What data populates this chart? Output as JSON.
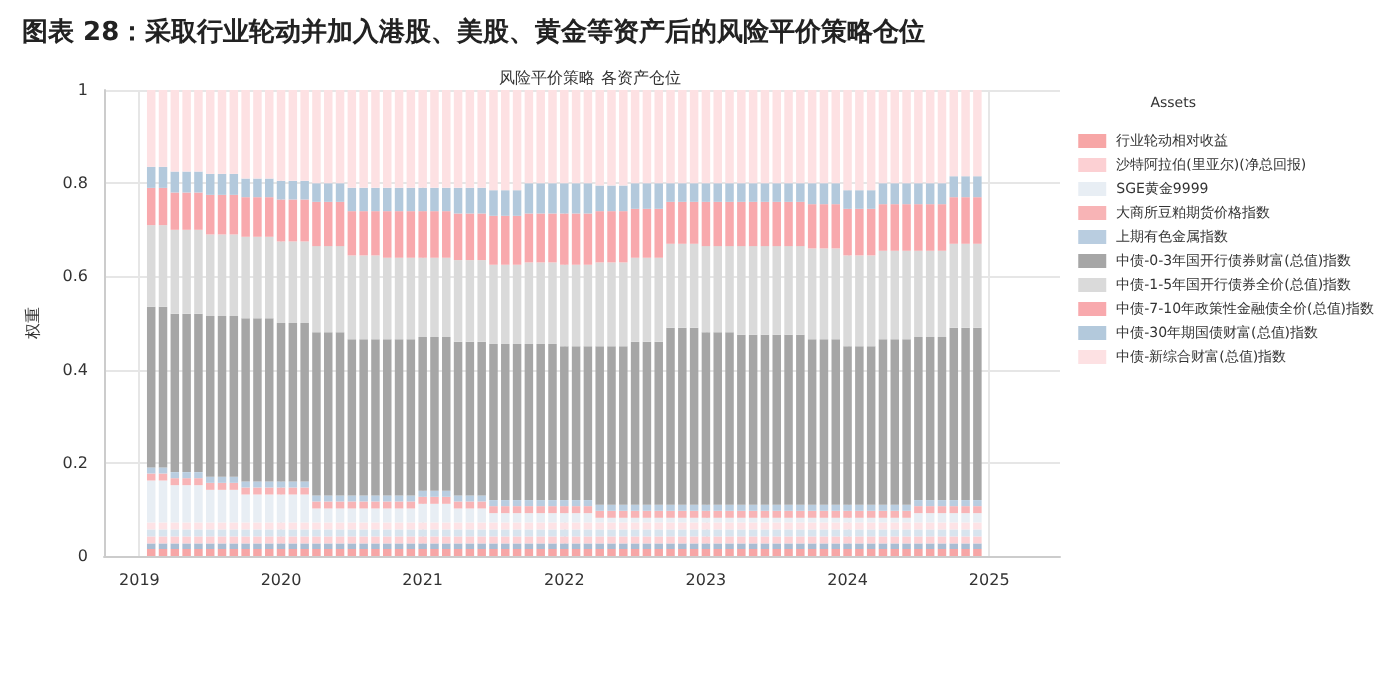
{
  "chart_data": {
    "type": "bar",
    "title": "图表 28：采取行业轮动并加入港股、美股、黄金等资产后的风险平价策略仓位",
    "subtitle": "风险平价策略 各资产仓位",
    "ylabel": "权重",
    "legend_title": "Assets",
    "stacked": true,
    "grid": true,
    "legend": "right",
    "xlim": [
      "2018-10",
      "2025-07"
    ],
    "xticks": [
      "2019",
      "2020",
      "2021",
      "2022",
      "2023",
      "2024",
      "2025"
    ],
    "ylim": [
      0,
      1
    ],
    "yticks": [
      0,
      0.2,
      0.4,
      0.6,
      0.8,
      1
    ],
    "x": [
      "2019-02",
      "2019-03",
      "2019-04",
      "2019-05",
      "2019-06",
      "2019-07",
      "2019-08",
      "2019-09",
      "2019-10",
      "2019-11",
      "2019-12",
      "2020-01",
      "2020-02",
      "2020-03",
      "2020-04",
      "2020-05",
      "2020-06",
      "2020-07",
      "2020-08",
      "2020-09",
      "2020-10",
      "2020-11",
      "2020-12",
      "2021-01",
      "2021-02",
      "2021-03",
      "2021-04",
      "2021-05",
      "2021-06",
      "2021-07",
      "2021-08",
      "2021-09",
      "2021-10",
      "2021-11",
      "2021-12",
      "2022-01",
      "2022-02",
      "2022-03",
      "2022-04",
      "2022-05",
      "2022-06",
      "2022-07",
      "2022-08",
      "2022-09",
      "2022-10",
      "2022-11",
      "2022-12",
      "2023-01",
      "2023-02",
      "2023-03",
      "2023-04",
      "2023-05",
      "2023-06",
      "2023-07",
      "2023-08",
      "2023-09",
      "2023-10",
      "2023-11",
      "2023-12",
      "2024-01",
      "2024-02",
      "2024-03",
      "2024-04",
      "2024-05",
      "2024-06",
      "2024-07",
      "2024-08",
      "2024-09",
      "2024-10",
      "2024-11",
      "2024-12"
    ],
    "series": [
      {
        "name": "行业轮动相对收益",
        "color": "#f7a6a6",
        "values": [
          0.015,
          0.015,
          0.015,
          0.015,
          0.015,
          0.015,
          0.015,
          0.015,
          0.015,
          0.015,
          0.015,
          0.015,
          0.015,
          0.015,
          0.015,
          0.015,
          0.015,
          0.015,
          0.015,
          0.015,
          0.015,
          0.015,
          0.015,
          0.015,
          0.015,
          0.015,
          0.015,
          0.015,
          0.015,
          0.015,
          0.015,
          0.015,
          0.015,
          0.015,
          0.015,
          0.015,
          0.015,
          0.015,
          0.015,
          0.015,
          0.015,
          0.015,
          0.015,
          0.015,
          0.015,
          0.015,
          0.015,
          0.015,
          0.015,
          0.015,
          0.015,
          0.015,
          0.015,
          0.015,
          0.015,
          0.015,
          0.015,
          0.015,
          0.015,
          0.015,
          0.015,
          0.015,
          0.015,
          0.015,
          0.015,
          0.015,
          0.015,
          0.015,
          0.015,
          0.015,
          0.015
        ]
      },
      {
        "color": "#a9bdd3",
        "values": [
          0.012,
          0.012,
          0.012,
          0.012,
          0.012,
          0.012,
          0.012,
          0.012,
          0.012,
          0.012,
          0.012,
          0.012,
          0.012,
          0.012,
          0.012,
          0.012,
          0.012,
          0.012,
          0.012,
          0.012,
          0.012,
          0.012,
          0.012,
          0.012,
          0.012,
          0.012,
          0.012,
          0.012,
          0.012,
          0.012,
          0.012,
          0.012,
          0.012,
          0.012,
          0.012,
          0.012,
          0.012,
          0.012,
          0.012,
          0.012,
          0.012,
          0.012,
          0.012,
          0.012,
          0.012,
          0.012,
          0.012,
          0.012,
          0.012,
          0.012,
          0.012,
          0.012,
          0.012,
          0.012,
          0.012,
          0.012,
          0.012,
          0.012,
          0.012,
          0.012,
          0.012,
          0.012,
          0.012,
          0.012,
          0.012,
          0.012,
          0.012,
          0.012,
          0.012,
          0.012,
          0.012
        ]
      },
      {
        "name": "沙特阿拉伯(里亚尔)(净总回报)",
        "color": "#fcd0d3",
        "values": [
          0.015,
          0.015,
          0.015,
          0.015,
          0.015,
          0.015,
          0.015,
          0.015,
          0.015,
          0.015,
          0.015,
          0.015,
          0.015,
          0.015,
          0.015,
          0.015,
          0.015,
          0.015,
          0.015,
          0.015,
          0.015,
          0.015,
          0.015,
          0.015,
          0.015,
          0.015,
          0.015,
          0.015,
          0.015,
          0.015,
          0.015,
          0.015,
          0.015,
          0.015,
          0.015,
          0.015,
          0.015,
          0.015,
          0.015,
          0.015,
          0.015,
          0.015,
          0.015,
          0.015,
          0.015,
          0.015,
          0.015,
          0.015,
          0.015,
          0.015,
          0.015,
          0.015,
          0.015,
          0.015,
          0.015,
          0.015,
          0.015,
          0.015,
          0.015,
          0.015,
          0.015,
          0.015,
          0.015,
          0.015,
          0.015,
          0.015,
          0.015,
          0.015,
          0.015,
          0.015,
          0.015
        ]
      },
      {
        "color": "#d8e4ee",
        "values": [
          0.015,
          0.015,
          0.015,
          0.015,
          0.015,
          0.015,
          0.015,
          0.015,
          0.015,
          0.015,
          0.015,
          0.015,
          0.015,
          0.015,
          0.015,
          0.015,
          0.015,
          0.015,
          0.015,
          0.015,
          0.015,
          0.015,
          0.015,
          0.015,
          0.015,
          0.015,
          0.015,
          0.015,
          0.015,
          0.015,
          0.015,
          0.015,
          0.015,
          0.015,
          0.015,
          0.015,
          0.015,
          0.015,
          0.015,
          0.015,
          0.015,
          0.015,
          0.015,
          0.015,
          0.015,
          0.015,
          0.015,
          0.015,
          0.015,
          0.015,
          0.015,
          0.015,
          0.015,
          0.015,
          0.015,
          0.015,
          0.015,
          0.015,
          0.015,
          0.015,
          0.015,
          0.015,
          0.015,
          0.015,
          0.015,
          0.015,
          0.015,
          0.015,
          0.015,
          0.015,
          0.015
        ]
      },
      {
        "color": "#fde3e6",
        "values": [
          0.015,
          0.015,
          0.015,
          0.015,
          0.015,
          0.015,
          0.015,
          0.015,
          0.015,
          0.015,
          0.015,
          0.015,
          0.015,
          0.015,
          0.015,
          0.015,
          0.015,
          0.015,
          0.015,
          0.015,
          0.015,
          0.015,
          0.015,
          0.015,
          0.015,
          0.015,
          0.015,
          0.015,
          0.015,
          0.015,
          0.015,
          0.015,
          0.015,
          0.015,
          0.015,
          0.015,
          0.015,
          0.015,
          0.015,
          0.015,
          0.015,
          0.015,
          0.015,
          0.015,
          0.015,
          0.015,
          0.015,
          0.015,
          0.015,
          0.015,
          0.015,
          0.015,
          0.015,
          0.015,
          0.015,
          0.015,
          0.015,
          0.015,
          0.015,
          0.015,
          0.015,
          0.015,
          0.015,
          0.015,
          0.015,
          0.015,
          0.015,
          0.015,
          0.015,
          0.015,
          0.015
        ]
      },
      {
        "name": "SGE黄金9999",
        "color": "#e8eef4",
        "values": [
          0.09,
          0.09,
          0.08,
          0.08,
          0.08,
          0.07,
          0.07,
          0.07,
          0.06,
          0.06,
          0.06,
          0.06,
          0.06,
          0.06,
          0.03,
          0.03,
          0.03,
          0.03,
          0.03,
          0.03,
          0.03,
          0.03,
          0.03,
          0.04,
          0.04,
          0.04,
          0.03,
          0.03,
          0.03,
          0.02,
          0.02,
          0.02,
          0.02,
          0.02,
          0.02,
          0.02,
          0.02,
          0.02,
          0.01,
          0.01,
          0.01,
          0.01,
          0.01,
          0.01,
          0.01,
          0.01,
          0.01,
          0.01,
          0.01,
          0.01,
          0.01,
          0.01,
          0.01,
          0.01,
          0.01,
          0.01,
          0.01,
          0.01,
          0.01,
          0.01,
          0.01,
          0.01,
          0.01,
          0.01,
          0.01,
          0.02,
          0.02,
          0.02,
          0.02,
          0.02,
          0.02
        ]
      },
      {
        "name": "大商所豆粕期货价格指数",
        "color": "#f8b4b6",
        "values": [
          0.015,
          0.015,
          0.015,
          0.015,
          0.015,
          0.015,
          0.015,
          0.015,
          0.015,
          0.015,
          0.015,
          0.015,
          0.015,
          0.015,
          0.015,
          0.015,
          0.015,
          0.015,
          0.015,
          0.015,
          0.015,
          0.015,
          0.015,
          0.015,
          0.015,
          0.015,
          0.015,
          0.015,
          0.015,
          0.015,
          0.015,
          0.015,
          0.015,
          0.015,
          0.015,
          0.015,
          0.015,
          0.015,
          0.015,
          0.015,
          0.015,
          0.015,
          0.015,
          0.015,
          0.015,
          0.015,
          0.015,
          0.015,
          0.015,
          0.015,
          0.015,
          0.015,
          0.015,
          0.015,
          0.015,
          0.015,
          0.015,
          0.015,
          0.015,
          0.015,
          0.015,
          0.015,
          0.015,
          0.015,
          0.015,
          0.015,
          0.015,
          0.015,
          0.015,
          0.015,
          0.015
        ]
      },
      {
        "name": "上期有色金属指数",
        "color": "#b9cde0",
        "values": [
          0.013,
          0.013,
          0.013,
          0.013,
          0.013,
          0.013,
          0.013,
          0.013,
          0.013,
          0.013,
          0.013,
          0.013,
          0.013,
          0.013,
          0.013,
          0.013,
          0.013,
          0.013,
          0.013,
          0.013,
          0.013,
          0.013,
          0.013,
          0.013,
          0.013,
          0.013,
          0.013,
          0.013,
          0.013,
          0.013,
          0.013,
          0.013,
          0.013,
          0.013,
          0.013,
          0.013,
          0.013,
          0.013,
          0.013,
          0.013,
          0.013,
          0.013,
          0.013,
          0.013,
          0.013,
          0.013,
          0.013,
          0.013,
          0.013,
          0.013,
          0.013,
          0.013,
          0.013,
          0.013,
          0.013,
          0.013,
          0.013,
          0.013,
          0.013,
          0.013,
          0.013,
          0.013,
          0.013,
          0.013,
          0.013,
          0.013,
          0.013,
          0.013,
          0.013,
          0.013,
          0.013
        ]
      },
      {
        "name": "中债-0-3年国开行债券财富(总值)指数",
        "color": "#a6a6a6",
        "values": [
          0.345,
          0.345,
          0.34,
          0.34,
          0.34,
          0.345,
          0.345,
          0.345,
          0.35,
          0.35,
          0.35,
          0.34,
          0.34,
          0.34,
          0.35,
          0.35,
          0.35,
          0.335,
          0.335,
          0.335,
          0.335,
          0.335,
          0.335,
          0.33,
          0.33,
          0.33,
          0.33,
          0.33,
          0.33,
          0.335,
          0.335,
          0.335,
          0.335,
          0.335,
          0.335,
          0.33,
          0.33,
          0.33,
          0.34,
          0.34,
          0.34,
          0.35,
          0.35,
          0.35,
          0.38,
          0.38,
          0.38,
          0.37,
          0.37,
          0.37,
          0.365,
          0.365,
          0.365,
          0.365,
          0.365,
          0.365,
          0.355,
          0.355,
          0.355,
          0.34,
          0.34,
          0.34,
          0.355,
          0.355,
          0.355,
          0.35,
          0.35,
          0.35,
          0.37,
          0.37,
          0.37
        ]
      },
      {
        "name": "中债-1-5年国开行债券全价(总值)指数",
        "color": "#dadada",
        "values": [
          0.175,
          0.175,
          0.18,
          0.18,
          0.18,
          0.175,
          0.175,
          0.175,
          0.175,
          0.175,
          0.175,
          0.175,
          0.175,
          0.175,
          0.185,
          0.185,
          0.185,
          0.18,
          0.18,
          0.18,
          0.175,
          0.175,
          0.175,
          0.17,
          0.17,
          0.17,
          0.175,
          0.175,
          0.175,
          0.17,
          0.17,
          0.17,
          0.175,
          0.175,
          0.175,
          0.175,
          0.175,
          0.175,
          0.18,
          0.18,
          0.18,
          0.18,
          0.18,
          0.18,
          0.18,
          0.18,
          0.18,
          0.185,
          0.185,
          0.185,
          0.19,
          0.19,
          0.19,
          0.19,
          0.19,
          0.19,
          0.195,
          0.195,
          0.195,
          0.195,
          0.195,
          0.195,
          0.19,
          0.19,
          0.19,
          0.185,
          0.185,
          0.185,
          0.18,
          0.18,
          0.18
        ]
      },
      {
        "name": "中债-7-10年政策性金融债全价(总值)指数",
        "color": "#f8a9ad",
        "values": [
          0.08,
          0.08,
          0.08,
          0.08,
          0.08,
          0.085,
          0.085,
          0.085,
          0.085,
          0.085,
          0.085,
          0.09,
          0.09,
          0.09,
          0.095,
          0.095,
          0.095,
          0.095,
          0.095,
          0.095,
          0.1,
          0.1,
          0.1,
          0.1,
          0.1,
          0.1,
          0.1,
          0.1,
          0.1,
          0.105,
          0.105,
          0.105,
          0.105,
          0.105,
          0.105,
          0.11,
          0.11,
          0.11,
          0.11,
          0.11,
          0.11,
          0.105,
          0.105,
          0.105,
          0.09,
          0.09,
          0.09,
          0.095,
          0.095,
          0.095,
          0.095,
          0.095,
          0.095,
          0.095,
          0.095,
          0.095,
          0.095,
          0.095,
          0.095,
          0.1,
          0.1,
          0.1,
          0.1,
          0.1,
          0.1,
          0.1,
          0.1,
          0.1,
          0.1,
          0.1,
          0.1
        ]
      },
      {
        "name": "中债-30年期国债财富(总值)指数",
        "color": "#b3c9dc",
        "values": [
          0.045,
          0.045,
          0.045,
          0.045,
          0.045,
          0.045,
          0.045,
          0.045,
          0.04,
          0.04,
          0.04,
          0.04,
          0.04,
          0.04,
          0.04,
          0.04,
          0.04,
          0.05,
          0.05,
          0.05,
          0.05,
          0.05,
          0.05,
          0.05,
          0.05,
          0.05,
          0.055,
          0.055,
          0.055,
          0.055,
          0.055,
          0.055,
          0.065,
          0.065,
          0.065,
          0.065,
          0.065,
          0.065,
          0.055,
          0.055,
          0.055,
          0.055,
          0.055,
          0.055,
          0.04,
          0.04,
          0.04,
          0.04,
          0.04,
          0.04,
          0.04,
          0.04,
          0.04,
          0.04,
          0.04,
          0.04,
          0.045,
          0.045,
          0.045,
          0.04,
          0.04,
          0.04,
          0.045,
          0.045,
          0.045,
          0.045,
          0.045,
          0.045,
          0.045,
          0.045,
          0.045
        ]
      },
      {
        "name": "中债-新综合财富(总值)指数",
        "color": "#fde1e3",
        "values": [
          0.165,
          0.165,
          0.175,
          0.175,
          0.175,
          0.18,
          0.18,
          0.18,
          0.19,
          0.19,
          0.19,
          0.195,
          0.195,
          0.195,
          0.2,
          0.2,
          0.2,
          0.21,
          0.21,
          0.21,
          0.21,
          0.21,
          0.21,
          0.21,
          0.21,
          0.21,
          0.21,
          0.21,
          0.21,
          0.215,
          0.215,
          0.215,
          0.2,
          0.2,
          0.2,
          0.2,
          0.2,
          0.2,
          0.205,
          0.205,
          0.205,
          0.2,
          0.2,
          0.2,
          0.2,
          0.2,
          0.2,
          0.2,
          0.2,
          0.2,
          0.2,
          0.2,
          0.2,
          0.2,
          0.2,
          0.2,
          0.2,
          0.2,
          0.2,
          0.215,
          0.215,
          0.215,
          0.2,
          0.2,
          0.2,
          0.2,
          0.2,
          0.2,
          0.185,
          0.185,
          0.185
        ]
      }
    ]
  }
}
